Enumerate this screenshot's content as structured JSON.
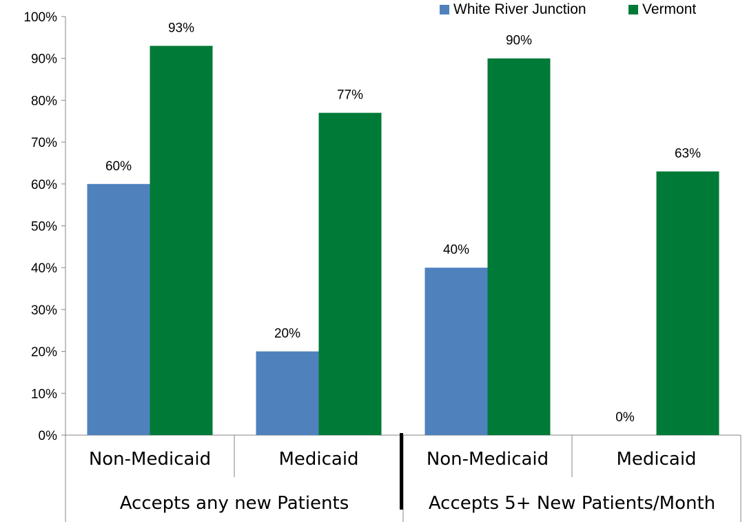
{
  "chart_data": {
    "type": "bar",
    "title": "",
    "xlabel": "",
    "ylabel": "",
    "ylim": [
      0,
      100
    ],
    "y_ticks": [
      "0%",
      "10%",
      "20%",
      "30%",
      "40%",
      "50%",
      "60%",
      "70%",
      "80%",
      "90%",
      "100%"
    ],
    "y_tick_values": [
      0,
      10,
      20,
      30,
      40,
      50,
      60,
      70,
      80,
      90,
      100
    ],
    "categories": [
      "Non-Medicaid",
      "Medicaid",
      "Non-Medicaid",
      "Medicaid"
    ],
    "groups": [
      {
        "label": "Accepts any new Patients",
        "categories": [
          0,
          1
        ]
      },
      {
        "label": "Accepts 5+ New Patients/Month",
        "categories": [
          2,
          3
        ]
      }
    ],
    "series": [
      {
        "name": "White River Junction",
        "color": "#4F81BD",
        "values": [
          60,
          20,
          40,
          0
        ],
        "labels": [
          "60%",
          "20%",
          "40%",
          "0%"
        ]
      },
      {
        "name": "Vermont",
        "color": "#007A37",
        "values": [
          93,
          77,
          90,
          63
        ],
        "labels": [
          "93%",
          "77%",
          "90%",
          "63%"
        ]
      }
    ],
    "legend_position": "top-right",
    "grid": false
  }
}
